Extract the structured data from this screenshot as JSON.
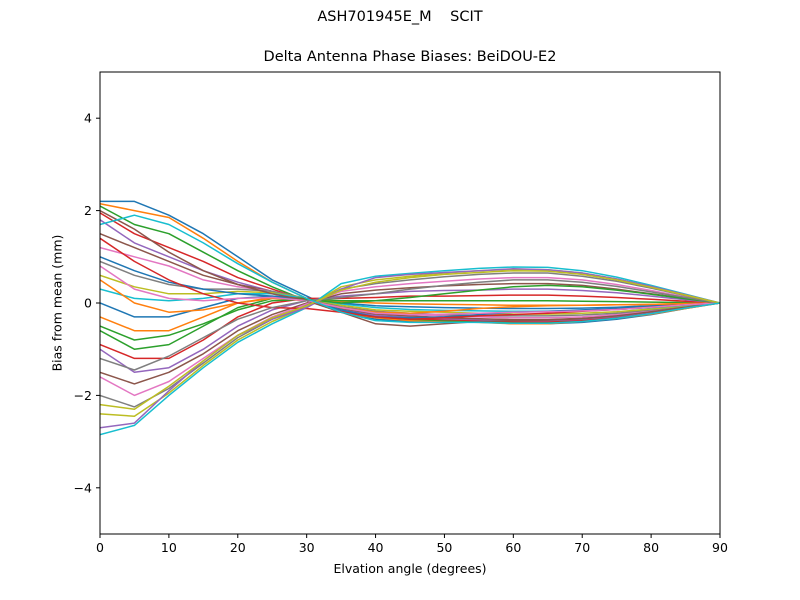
{
  "figure": {
    "suptitle": "ASH701945E_M    SCIT"
  },
  "chart_data": {
    "type": "line",
    "title": "Delta Antenna Phase Biases: BeiDOU-E2",
    "xlabel": "Elvation angle (degrees)",
    "ylabel": "Bias from mean (mm)",
    "xlim": [
      0,
      90
    ],
    "ylim": [
      -5,
      5
    ],
    "xticks": [
      0,
      10,
      20,
      30,
      40,
      50,
      60,
      70,
      80,
      90
    ],
    "yticks": [
      -4,
      -2,
      0,
      2,
      4
    ],
    "ytick_labels": [
      "−4",
      "−2",
      "0",
      "2",
      "4"
    ],
    "grid": false,
    "legend": "none",
    "x": [
      0,
      5,
      10,
      15,
      20,
      25,
      30,
      35,
      40,
      45,
      50,
      55,
      60,
      65,
      70,
      75,
      80,
      85,
      90
    ],
    "colors": [
      "#1f77b4",
      "#ff7f0e",
      "#2ca02c",
      "#d62728",
      "#9467bd",
      "#8c564b",
      "#e377c2",
      "#7f7f7f",
      "#bcbd22",
      "#17becf"
    ],
    "series": [
      {
        "values": [
          2.2,
          2.2,
          1.9,
          1.5,
          1.0,
          0.5,
          0.15,
          -0.2,
          -0.35,
          -0.4,
          -0.4,
          -0.4,
          -0.45,
          -0.45,
          -0.42,
          -0.35,
          -0.25,
          -0.12,
          0
        ]
      },
      {
        "values": [
          2.15,
          2.0,
          1.85,
          1.4,
          0.9,
          0.45,
          0.1,
          -0.2,
          -0.32,
          -0.38,
          -0.4,
          -0.42,
          -0.45,
          -0.45,
          -0.4,
          -0.33,
          -0.24,
          -0.12,
          0
        ]
      },
      {
        "values": [
          2.1,
          1.7,
          1.5,
          1.1,
          0.7,
          0.35,
          0.05,
          -0.2,
          -0.3,
          -0.35,
          -0.38,
          -0.4,
          -0.42,
          -0.42,
          -0.38,
          -0.32,
          -0.22,
          -0.1,
          0
        ]
      },
      {
        "values": [
          1.95,
          1.5,
          1.2,
          0.9,
          0.55,
          0.3,
          0.05,
          -0.18,
          -0.3,
          -0.34,
          -0.36,
          -0.38,
          -0.4,
          -0.4,
          -0.37,
          -0.3,
          -0.21,
          -0.1,
          0
        ]
      },
      {
        "values": [
          1.8,
          1.3,
          1.0,
          0.7,
          0.45,
          0.25,
          0.05,
          -0.15,
          -0.27,
          -0.31,
          -0.34,
          -0.36,
          -0.38,
          -0.38,
          -0.35,
          -0.29,
          -0.2,
          -0.1,
          0
        ]
      },
      {
        "values": [
          1.5,
          1.2,
          0.9,
          0.6,
          0.4,
          0.25,
          0.08,
          -0.12,
          -0.24,
          -0.28,
          -0.32,
          -0.34,
          -0.36,
          -0.36,
          -0.33,
          -0.27,
          -0.19,
          -0.09,
          0
        ]
      },
      {
        "values": [
          1.2,
          1.0,
          0.8,
          0.5,
          0.35,
          0.25,
          0.1,
          -0.1,
          -0.2,
          -0.25,
          -0.28,
          -0.3,
          -0.32,
          -0.32,
          -0.3,
          -0.25,
          -0.17,
          -0.08,
          0
        ]
      },
      {
        "values": [
          0.9,
          0.6,
          0.4,
          0.3,
          0.3,
          0.25,
          0.1,
          -0.08,
          -0.18,
          -0.22,
          -0.25,
          -0.27,
          -0.28,
          -0.28,
          -0.26,
          -0.22,
          -0.15,
          -0.07,
          0
        ]
      },
      {
        "values": [
          0.6,
          0.35,
          0.2,
          0.2,
          0.25,
          0.22,
          0.1,
          -0.05,
          -0.15,
          -0.18,
          -0.2,
          -0.22,
          -0.24,
          -0.24,
          -0.22,
          -0.19,
          -0.13,
          -0.06,
          0
        ]
      },
      {
        "values": [
          0.3,
          0.1,
          0.05,
          0.1,
          0.2,
          0.2,
          0.1,
          -0.02,
          -0.1,
          -0.14,
          -0.16,
          -0.17,
          -0.18,
          -0.18,
          -0.17,
          -0.14,
          -0.1,
          -0.05,
          0
        ]
      },
      {
        "values": [
          0.0,
          -0.3,
          -0.3,
          -0.1,
          0.1,
          0.15,
          0.1,
          0.0,
          -0.06,
          -0.08,
          -0.1,
          -0.11,
          -0.12,
          -0.12,
          -0.11,
          -0.09,
          -0.06,
          -0.03,
          0
        ]
      },
      {
        "values": [
          -0.3,
          -0.6,
          -0.6,
          -0.3,
          0.0,
          0.12,
          0.1,
          0.03,
          0.0,
          -0.02,
          -0.03,
          -0.04,
          -0.05,
          -0.05,
          -0.05,
          -0.04,
          -0.03,
          -0.01,
          0
        ]
      },
      {
        "values": [
          -0.6,
          -1.0,
          -0.9,
          -0.5,
          -0.1,
          0.1,
          0.1,
          0.05,
          0.05,
          0.05,
          0.05,
          0.05,
          0.05,
          0.05,
          0.04,
          0.03,
          0.02,
          0.01,
          0
        ]
      },
      {
        "values": [
          -0.9,
          -1.2,
          -1.2,
          -0.8,
          -0.3,
          0.0,
          0.1,
          0.1,
          0.12,
          0.15,
          0.15,
          0.16,
          0.17,
          0.17,
          0.15,
          0.12,
          0.08,
          0.04,
          0
        ]
      },
      {
        "values": [
          -1.0,
          -1.5,
          -1.4,
          -1.0,
          -0.5,
          -0.15,
          0.05,
          0.15,
          0.2,
          0.25,
          0.27,
          0.28,
          0.3,
          0.3,
          0.27,
          0.22,
          0.15,
          0.07,
          0
        ]
      },
      {
        "values": [
          -1.5,
          -1.75,
          -1.5,
          -1.1,
          -0.6,
          -0.25,
          0.0,
          0.2,
          0.28,
          0.33,
          0.37,
          0.4,
          0.42,
          0.42,
          0.38,
          0.3,
          0.2,
          0.1,
          0
        ]
      },
      {
        "values": [
          -1.6,
          -2.0,
          -1.7,
          -1.2,
          -0.7,
          -0.3,
          -0.02,
          0.25,
          0.35,
          0.42,
          0.47,
          0.52,
          0.55,
          0.55,
          0.5,
          0.4,
          0.27,
          0.13,
          0
        ]
      },
      {
        "values": [
          -2.0,
          -2.25,
          -1.85,
          -1.3,
          -0.75,
          -0.35,
          -0.05,
          0.3,
          0.42,
          0.5,
          0.57,
          0.62,
          0.65,
          0.65,
          0.58,
          0.47,
          0.32,
          0.16,
          0
        ]
      },
      {
        "values": [
          -2.4,
          -2.45,
          -1.95,
          -1.35,
          -0.8,
          -0.4,
          -0.08,
          0.35,
          0.5,
          0.58,
          0.65,
          0.7,
          0.73,
          0.72,
          0.65,
          0.52,
          0.35,
          0.17,
          0
        ]
      },
      {
        "values": [
          -2.85,
          -2.65,
          -2.0,
          -1.4,
          -0.85,
          -0.45,
          -0.1,
          0.42,
          0.58,
          0.64,
          0.7,
          0.75,
          0.78,
          0.77,
          0.7,
          0.56,
          0.38,
          0.19,
          0
        ]
      },
      {
        "values": [
          1.0,
          0.7,
          0.45,
          0.3,
          0.2,
          0.15,
          0.05,
          -0.15,
          -0.3,
          -0.32,
          -0.3,
          -0.25,
          -0.2,
          -0.18,
          -0.15,
          -0.12,
          -0.08,
          -0.04,
          0
        ]
      },
      {
        "values": [
          0.5,
          0.0,
          -0.2,
          -0.15,
          0.0,
          0.1,
          0.05,
          -0.1,
          -0.2,
          -0.22,
          -0.18,
          -0.12,
          -0.08,
          -0.06,
          -0.05,
          -0.04,
          -0.03,
          -0.01,
          0
        ]
      },
      {
        "values": [
          -0.5,
          -0.8,
          -0.7,
          -0.45,
          -0.15,
          0.05,
          0.08,
          0.0,
          0.05,
          0.12,
          0.2,
          0.28,
          0.35,
          0.38,
          0.35,
          0.28,
          0.19,
          0.09,
          0
        ]
      },
      {
        "values": [
          1.4,
          0.9,
          0.5,
          0.2,
          0.0,
          -0.1,
          -0.12,
          -0.2,
          -0.3,
          -0.35,
          -0.32,
          -0.28,
          -0.25,
          -0.22,
          -0.18,
          -0.14,
          -0.09,
          -0.04,
          0
        ]
      },
      {
        "values": [
          -2.7,
          -2.6,
          -1.9,
          -1.25,
          -0.7,
          -0.35,
          -0.1,
          0.3,
          0.55,
          0.62,
          0.66,
          0.7,
          0.74,
          0.72,
          0.65,
          0.52,
          0.36,
          0.18,
          0
        ]
      },
      {
        "values": [
          2.0,
          1.6,
          1.1,
          0.7,
          0.4,
          0.2,
          0.05,
          -0.2,
          -0.45,
          -0.5,
          -0.45,
          -0.4,
          -0.38,
          -0.37,
          -0.34,
          -0.28,
          -0.19,
          -0.09,
          0
        ]
      },
      {
        "values": [
          0.8,
          0.3,
          0.1,
          0.05,
          0.1,
          0.12,
          0.05,
          -0.1,
          -0.22,
          -0.25,
          -0.24,
          -0.22,
          -0.2,
          -0.19,
          -0.17,
          -0.14,
          -0.09,
          -0.04,
          0
        ]
      },
      {
        "values": [
          -1.2,
          -1.45,
          -1.15,
          -0.75,
          -0.35,
          -0.1,
          0.05,
          0.12,
          0.2,
          0.3,
          0.38,
          0.45,
          0.5,
          0.5,
          0.45,
          0.36,
          0.24,
          0.12,
          0
        ]
      },
      {
        "values": [
          -2.2,
          -2.3,
          -1.8,
          -1.25,
          -0.7,
          -0.32,
          -0.06,
          0.28,
          0.45,
          0.55,
          0.62,
          0.66,
          0.7,
          0.69,
          0.62,
          0.5,
          0.34,
          0.17,
          0
        ]
      },
      {
        "values": [
          1.7,
          1.9,
          1.7,
          1.3,
          0.85,
          0.45,
          0.1,
          -0.2,
          -0.38,
          -0.42,
          -0.42,
          -0.42,
          -0.44,
          -0.44,
          -0.4,
          -0.33,
          -0.23,
          -0.11,
          0
        ]
      }
    ]
  }
}
